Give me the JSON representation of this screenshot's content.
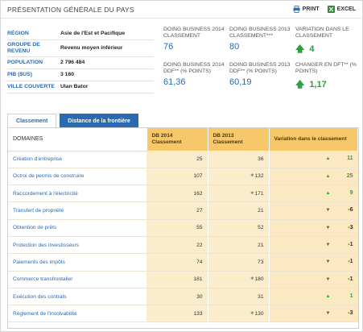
{
  "header": {
    "title": "PRÉSENTATION GÉNÉRALE DU PAYS",
    "print_label": "PRINT",
    "excel_label": "EXCEL"
  },
  "overview": {
    "info": [
      {
        "key": "RÉGION",
        "value": "Asie de l'Est et Pacifique"
      },
      {
        "key": "GROUPE DE REVENU",
        "value": "Revenu moyen inférieur"
      },
      {
        "key": "POPULATION",
        "value": "2 796 484"
      },
      {
        "key": "PIB ($US)",
        "value": "3 160"
      },
      {
        "key": "VILLE COUVERTE",
        "value": "Ulan Bator"
      }
    ],
    "kpis": [
      {
        "label": "DOING BUSINESS 2014 CLASSEMENT",
        "value": "76"
      },
      {
        "label": "DOING BUSINESS 2013 CLASSEMENT***",
        "value": "80"
      },
      {
        "label": "VARIATION DANS LE CLASSEMENT",
        "value": "4"
      },
      {
        "label": "DOING BUSINESS 2014 DDF** (% POINTS)",
        "value": "61,36"
      },
      {
        "label": "DOING BUSINESS 2013 DDF** (% POINTS)",
        "value": "60,19"
      },
      {
        "label": "CHANGER EN DFT** (% POINTS)",
        "value": "1,17"
      }
    ]
  },
  "tabs": {
    "active": "Classement",
    "other": "Distance de la frontière"
  },
  "table": {
    "headers": {
      "domain": "DOMAINES",
      "db2014": "DB 2014 Classement",
      "db2013": "DB 2013 Classement",
      "variation": "Variation dans le classement"
    },
    "rows": [
      {
        "domain": "Création d'entreprise",
        "db2014": "25",
        "db2013": "36",
        "starred": false,
        "direction": "up",
        "change": "11"
      },
      {
        "domain": "Octroi de permis de construire",
        "db2014": "107",
        "db2013": "132",
        "starred": true,
        "direction": "up",
        "change": "25"
      },
      {
        "domain": "Raccordement à l'électricité",
        "db2014": "162",
        "db2013": "171",
        "starred": true,
        "direction": "up",
        "change": "9"
      },
      {
        "domain": "Transfert de propriété",
        "db2014": "27",
        "db2013": "21",
        "starred": false,
        "direction": "down",
        "change": "-6"
      },
      {
        "domain": "Obtention de prêts",
        "db2014": "55",
        "db2013": "52",
        "starred": false,
        "direction": "down",
        "change": "-3"
      },
      {
        "domain": "Protection des investisseurs",
        "db2014": "22",
        "db2013": "21",
        "starred": false,
        "direction": "down",
        "change": "-1"
      },
      {
        "domain": "Paiements des impôts",
        "db2014": "74",
        "db2013": "73",
        "starred": false,
        "direction": "down",
        "change": "-1"
      },
      {
        "domain": "Commerce transfrontalier",
        "db2014": "181",
        "db2013": "180",
        "starred": true,
        "direction": "down",
        "change": "-1"
      },
      {
        "domain": "Exécution des contrats",
        "db2014": "30",
        "db2013": "31",
        "starred": false,
        "direction": "up",
        "change": "1"
      },
      {
        "domain": "Règlement de l'insolvabilité",
        "db2014": "133",
        "db2013": "130",
        "starred": true,
        "direction": "down",
        "change": "-3"
      }
    ]
  },
  "colors": {
    "link_blue": "#2a6ab0",
    "header_orange": "#f7c86a",
    "cell_tint": "#fbeccc",
    "positive_green": "#2ea043"
  }
}
